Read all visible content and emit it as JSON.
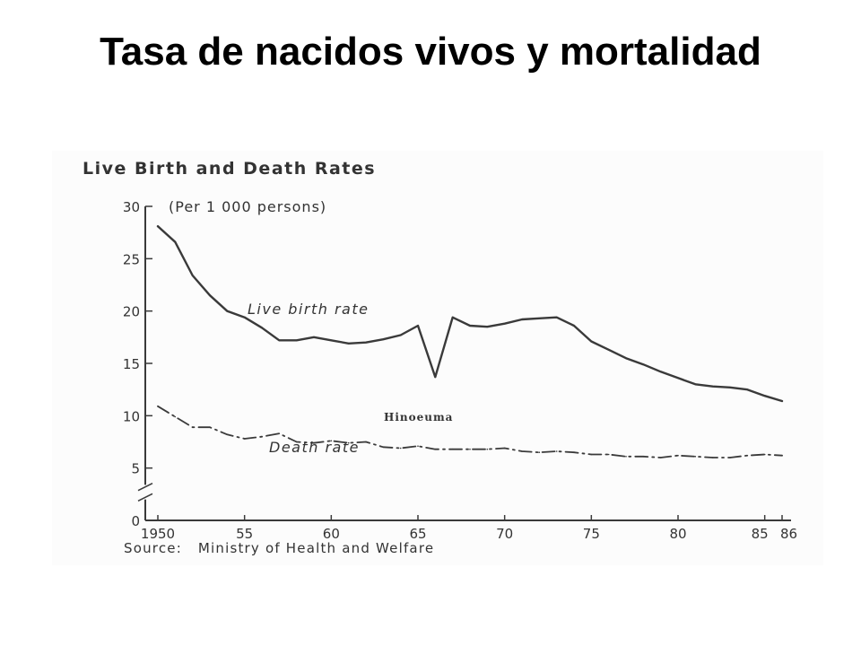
{
  "slide": {
    "title": "Tasa de nacidos vivos y mortalidad"
  },
  "colors": {
    "ink": "#3a3a3a",
    "background": "#ffffff",
    "scan_bg": "#fcfcfc"
  },
  "chart_data": {
    "type": "line",
    "title": "Live Birth and Death Rates",
    "subtitle": "(Per 1 000 persons)",
    "source": "Source:   Ministry of Health and Welfare",
    "annotation": "Hinoeuma",
    "xlim": [
      1950,
      1986
    ],
    "ylim": [
      0,
      30
    ],
    "x_ticks": [
      {
        "value": 1950,
        "label": "1950"
      },
      {
        "value": 1955,
        "label": "55"
      },
      {
        "value": 1960,
        "label": "60"
      },
      {
        "value": 1965,
        "label": "65"
      },
      {
        "value": 1970,
        "label": "70"
      },
      {
        "value": 1975,
        "label": "75"
      },
      {
        "value": 1980,
        "label": "80"
      },
      {
        "value": 1985,
        "label": "85"
      },
      {
        "value": 1986,
        "label": "86"
      }
    ],
    "y_ticks": [
      {
        "value": 0,
        "label": "0"
      },
      {
        "value": 5,
        "label": "5"
      },
      {
        "value": 10,
        "label": "10"
      },
      {
        "value": 15,
        "label": "15"
      },
      {
        "value": 20,
        "label": "20"
      },
      {
        "value": 25,
        "label": "25"
      },
      {
        "value": 30,
        "label": "30"
      }
    ],
    "axis_break": true,
    "grid": false,
    "series": [
      {
        "name": "Live birth rate",
        "style": "solid",
        "x": [
          1950,
          1951,
          1952,
          1953,
          1954,
          1955,
          1956,
          1957,
          1958,
          1959,
          1960,
          1961,
          1962,
          1963,
          1964,
          1965,
          1966,
          1967,
          1968,
          1969,
          1970,
          1971,
          1972,
          1973,
          1974,
          1975,
          1976,
          1977,
          1978,
          1979,
          1980,
          1981,
          1982,
          1983,
          1984,
          1985,
          1986
        ],
        "values": [
          28.1,
          26.6,
          23.4,
          21.5,
          20.0,
          19.4,
          18.4,
          17.2,
          17.2,
          17.5,
          17.2,
          16.9,
          17.0,
          17.3,
          17.7,
          18.6,
          13.7,
          19.4,
          18.6,
          18.5,
          18.8,
          19.2,
          19.3,
          19.4,
          18.6,
          17.1,
          16.3,
          15.5,
          14.9,
          14.2,
          13.6,
          13.0,
          12.8,
          12.7,
          12.5,
          11.9,
          11.4
        ]
      },
      {
        "name": "Death rate",
        "style": "dash-dot",
        "x": [
          1950,
          1951,
          1952,
          1953,
          1954,
          1955,
          1956,
          1957,
          1958,
          1959,
          1960,
          1961,
          1962,
          1963,
          1964,
          1965,
          1966,
          1967,
          1968,
          1969,
          1970,
          1971,
          1972,
          1973,
          1974,
          1975,
          1976,
          1977,
          1978,
          1979,
          1980,
          1981,
          1982,
          1983,
          1984,
          1985,
          1986
        ],
        "values": [
          10.9,
          9.9,
          8.9,
          8.9,
          8.2,
          7.8,
          8.0,
          8.3,
          7.5,
          7.4,
          7.6,
          7.4,
          7.5,
          7.0,
          6.9,
          7.1,
          6.8,
          6.8,
          6.8,
          6.8,
          6.9,
          6.6,
          6.5,
          6.6,
          6.5,
          6.3,
          6.3,
          6.1,
          6.1,
          6.0,
          6.2,
          6.1,
          6.0,
          6.0,
          6.2,
          6.3,
          6.2
        ]
      }
    ]
  }
}
